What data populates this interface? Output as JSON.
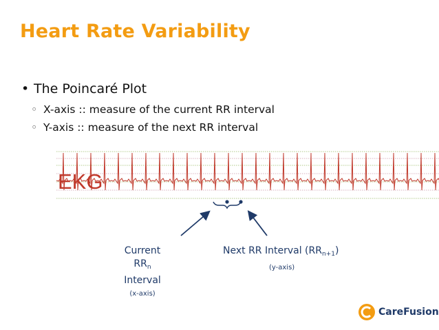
{
  "slide": {
    "title": "Heart Rate Variability",
    "bullet": "The Poincaré Plot",
    "subbullets": [
      "X-axis :: measure of the current RR interval",
      "Y-axis :: measure of the next RR interval"
    ]
  },
  "figure": {
    "ekg_label": "EKG"
  },
  "labels": {
    "current_line1": "Current",
    "current_rr": "RR",
    "current_sub": "n",
    "current_line3": "Interval",
    "current_axis": "(x-axis)",
    "next_text": "Next RR Interval (RR",
    "next_sub": "n+1",
    "next_close": ")",
    "next_axis": "(y-axis)"
  },
  "logo": {
    "text": "CareFusion",
    "icon": "carefusion-logo-icon"
  },
  "colors": {
    "title": "#f39c12",
    "ekg_trace": "#c0392b",
    "label": "#1f3a68"
  }
}
